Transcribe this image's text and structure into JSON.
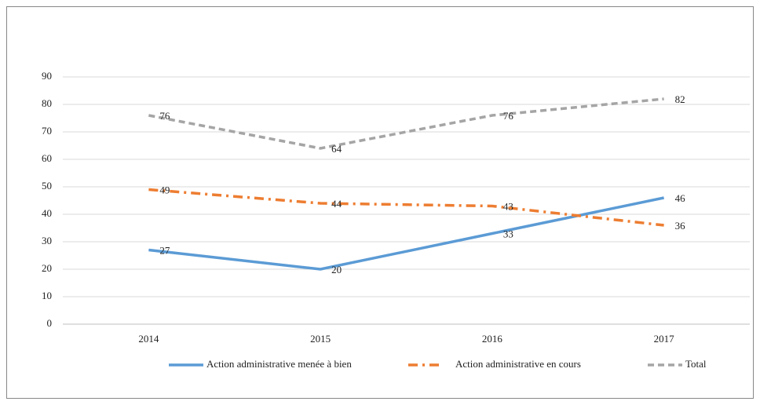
{
  "chart_data": {
    "type": "line",
    "categories": [
      "2014",
      "2015",
      "2016",
      "2017"
    ],
    "series": [
      {
        "name": "Action administrative menée à bien",
        "color": "#5b9bd5",
        "values": [
          27,
          20,
          33,
          46
        ]
      },
      {
        "name": "Action administrative en cours",
        "color": "#ed7d31",
        "values": [
          49,
          44,
          43,
          36
        ]
      },
      {
        "name": "Total",
        "color": "#a5a5a5",
        "values": [
          76,
          64,
          76,
          82
        ]
      }
    ],
    "ylim": [
      0,
      90
    ],
    "yticks": [
      0,
      10,
      20,
      30,
      40,
      50,
      60,
      70,
      80,
      90
    ],
    "grid": true,
    "legend": "bottom",
    "data_labels": true
  }
}
